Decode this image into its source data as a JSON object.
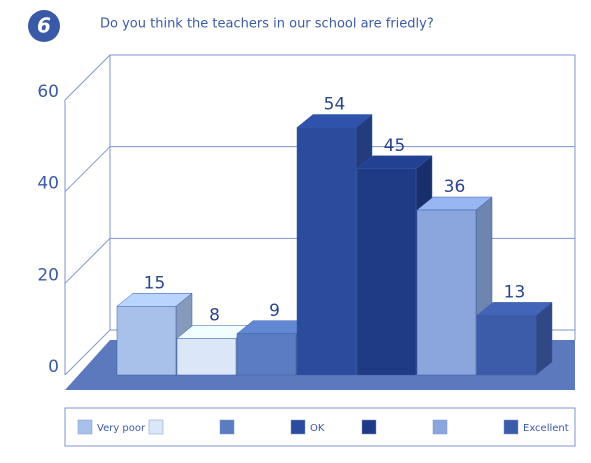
{
  "chart_data": {
    "type": "bar",
    "badge": "6",
    "title": "Do you think the teachers in our school are friedly?",
    "categories": [
      "Very poor",
      null,
      null,
      "OK",
      null,
      null,
      "Excellent"
    ],
    "values": [
      15,
      8,
      9,
      54,
      45,
      36,
      13
    ],
    "colors": [
      "#a7c1ea",
      "#dbe7f8",
      "#5a7cc0",
      "#2b4b9c",
      "#1f3b86",
      "#8aa6dc",
      "#3c5ba8"
    ],
    "ylim": [
      0,
      60
    ],
    "yticks": [
      0,
      20,
      40,
      60
    ],
    "grid": true
  }
}
